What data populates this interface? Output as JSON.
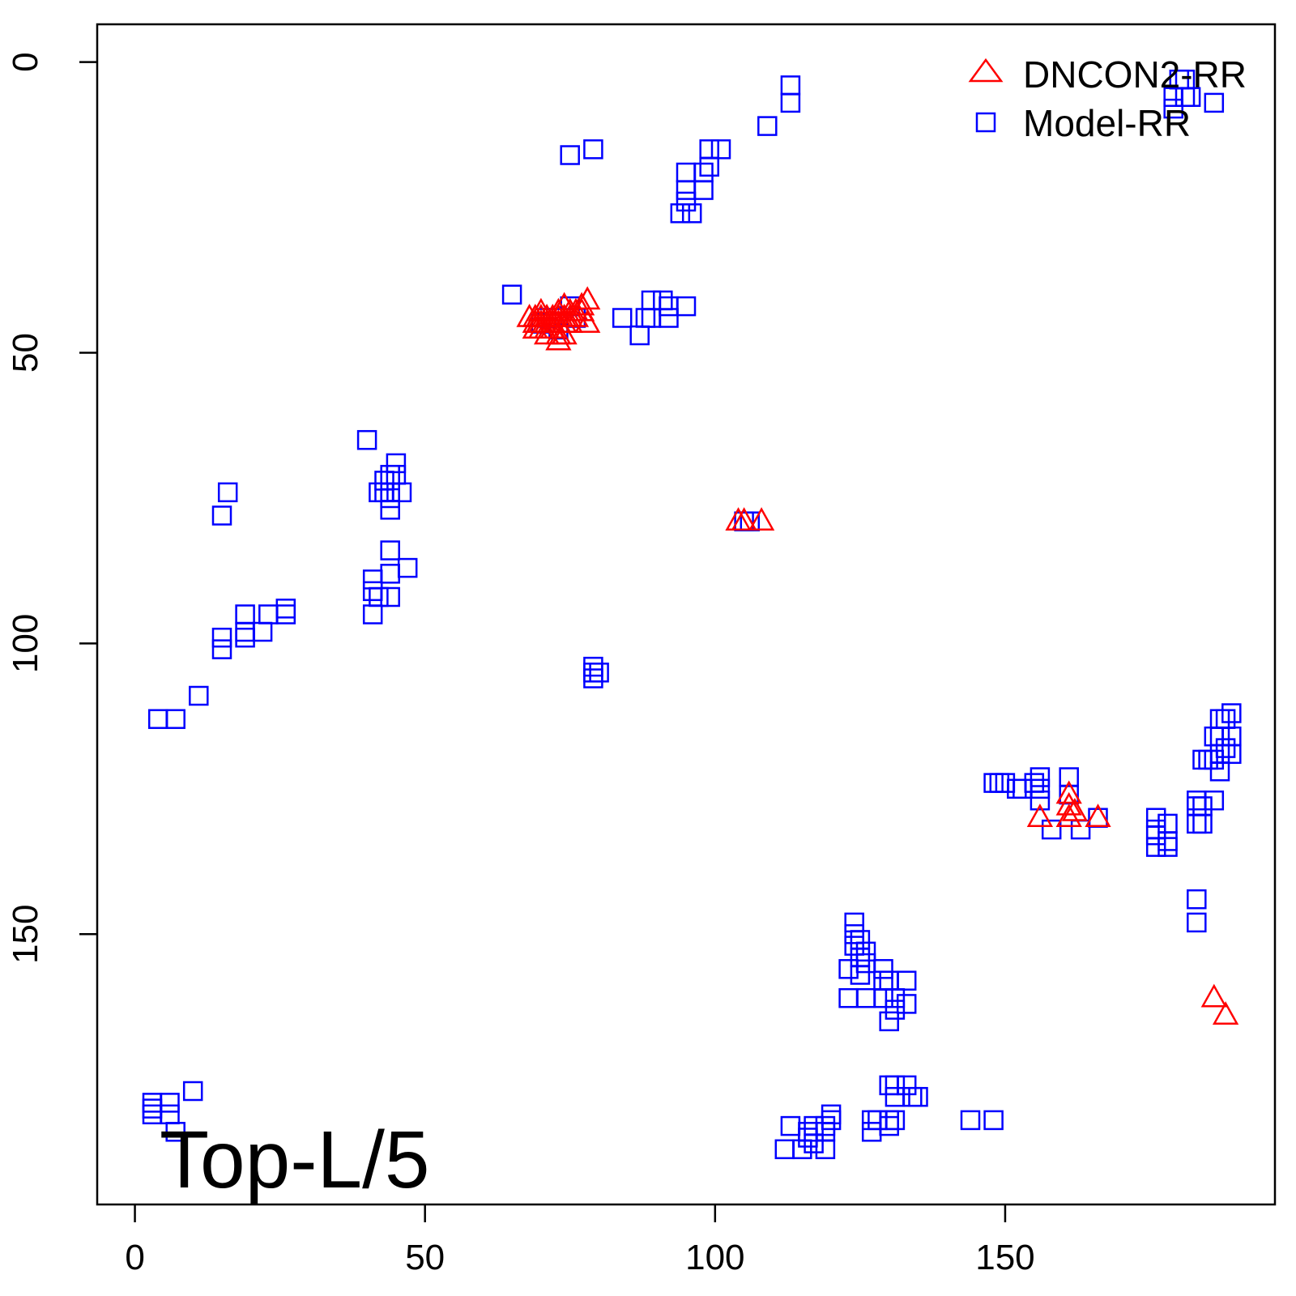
{
  "chart_data": {
    "type": "scatter",
    "x_ticks": [
      0,
      50,
      100,
      150
    ],
    "y_ticks": [
      0,
      50,
      100,
      150
    ],
    "xlim": [
      -6.5,
      196.5
    ],
    "ylim": [
      196.5,
      -6.5
    ],
    "y_reversed": true,
    "legend_position": "top-right",
    "annotation": "Top-L/5",
    "series": [
      {
        "name": "DNCON2-RR",
        "marker": "triangle",
        "color": "#ff0000",
        "points": [
          [
            68,
            44
          ],
          [
            69,
            44
          ],
          [
            69,
            45
          ],
          [
            69,
            46
          ],
          [
            70,
            43
          ],
          [
            70,
            44
          ],
          [
            70,
            45
          ],
          [
            70,
            46
          ],
          [
            71,
            44
          ],
          [
            71,
            45
          ],
          [
            71,
            46
          ],
          [
            71,
            47
          ],
          [
            72,
            44
          ],
          [
            72,
            45
          ],
          [
            72,
            46
          ],
          [
            73,
            43
          ],
          [
            73,
            44
          ],
          [
            73,
            45
          ],
          [
            73,
            47
          ],
          [
            73,
            48
          ],
          [
            74,
            42
          ],
          [
            74,
            44
          ],
          [
            74,
            45
          ],
          [
            74,
            47
          ],
          [
            75,
            43
          ],
          [
            75,
            44
          ],
          [
            75,
            45
          ],
          [
            76,
            43
          ],
          [
            76,
            44
          ],
          [
            77,
            42
          ],
          [
            77,
            43
          ],
          [
            78,
            41
          ],
          [
            78,
            45
          ],
          [
            104,
            79
          ],
          [
            105,
            79
          ],
          [
            108,
            79
          ],
          [
            156,
            130
          ],
          [
            161,
            126
          ],
          [
            161,
            128
          ],
          [
            161,
            130
          ],
          [
            162,
            129
          ],
          [
            166,
            130
          ],
          [
            186,
            161
          ],
          [
            188,
            164
          ]
        ]
      },
      {
        "name": "Model-RR",
        "marker": "square",
        "color": "#0000ff",
        "points": [
          [
            180,
            3
          ],
          [
            181,
            6
          ],
          [
            182,
            6
          ],
          [
            181,
            3
          ],
          [
            186,
            7
          ],
          [
            179,
            6
          ],
          [
            179,
            8
          ],
          [
            113,
            4
          ],
          [
            113,
            7
          ],
          [
            109,
            11
          ],
          [
            101,
            15
          ],
          [
            99,
            15
          ],
          [
            99,
            18
          ],
          [
            98,
            19
          ],
          [
            98,
            22
          ],
          [
            95,
            19
          ],
          [
            95,
            22
          ],
          [
            95,
            24
          ],
          [
            94,
            26
          ],
          [
            96,
            26
          ],
          [
            79,
            15
          ],
          [
            75,
            16
          ],
          [
            65,
            40
          ],
          [
            70,
            45
          ],
          [
            71,
            44
          ],
          [
            72,
            44
          ],
          [
            73,
            46
          ],
          [
            75,
            42
          ],
          [
            76,
            44
          ],
          [
            84,
            44
          ],
          [
            87,
            47
          ],
          [
            88,
            44
          ],
          [
            89,
            41
          ],
          [
            89,
            44
          ],
          [
            91,
            41
          ],
          [
            92,
            42
          ],
          [
            92,
            44
          ],
          [
            95,
            42
          ],
          [
            40,
            65
          ],
          [
            45,
            69
          ],
          [
            44,
            71
          ],
          [
            45,
            71
          ],
          [
            43,
            72
          ],
          [
            42,
            74
          ],
          [
            43,
            74
          ],
          [
            44,
            74
          ],
          [
            46,
            74
          ],
          [
            44,
            75
          ],
          [
            44,
            77
          ],
          [
            16,
            74
          ],
          [
            15,
            78
          ],
          [
            105,
            79
          ],
          [
            106,
            79
          ],
          [
            44,
            84
          ],
          [
            47,
            87
          ],
          [
            44,
            88
          ],
          [
            41,
            89
          ],
          [
            41,
            91
          ],
          [
            44,
            92
          ],
          [
            42,
            92
          ],
          [
            41,
            95
          ],
          [
            26,
            94
          ],
          [
            26,
            95
          ],
          [
            23,
            95
          ],
          [
            19,
            95
          ],
          [
            22,
            98
          ],
          [
            19,
            98
          ],
          [
            19,
            99
          ],
          [
            15,
            99
          ],
          [
            15,
            101
          ],
          [
            79,
            104
          ],
          [
            79,
            105
          ],
          [
            80,
            105
          ],
          [
            79,
            106
          ],
          [
            11,
            109
          ],
          [
            7,
            113
          ],
          [
            4,
            113
          ],
          [
            189,
            112
          ],
          [
            187,
            113
          ],
          [
            188,
            113
          ],
          [
            187,
            116
          ],
          [
            189,
            116
          ],
          [
            186,
            116
          ],
          [
            188,
            118
          ],
          [
            187,
            119
          ],
          [
            189,
            119
          ],
          [
            184,
            120
          ],
          [
            185,
            120
          ],
          [
            186,
            120
          ],
          [
            187,
            122
          ],
          [
            148,
            124
          ],
          [
            149,
            124
          ],
          [
            150,
            124
          ],
          [
            152,
            125
          ],
          [
            153,
            125
          ],
          [
            155,
            124
          ],
          [
            156,
            123
          ],
          [
            156,
            125
          ],
          [
            156,
            127
          ],
          [
            161,
            123
          ],
          [
            161,
            126
          ],
          [
            158,
            132
          ],
          [
            163,
            132
          ],
          [
            166,
            130
          ],
          [
            176,
            130
          ],
          [
            176,
            132
          ],
          [
            176,
            133
          ],
          [
            178,
            131
          ],
          [
            178,
            134
          ],
          [
            178,
            135
          ],
          [
            176,
            135
          ],
          [
            183,
            127
          ],
          [
            183,
            128
          ],
          [
            184,
            128
          ],
          [
            186,
            127
          ],
          [
            183,
            131
          ],
          [
            184,
            131
          ],
          [
            183,
            144
          ],
          [
            183,
            148
          ],
          [
            124,
            148
          ],
          [
            124,
            150
          ],
          [
            125,
            151
          ],
          [
            124,
            152
          ],
          [
            125,
            154
          ],
          [
            126,
            153
          ],
          [
            126,
            155
          ],
          [
            123,
            156
          ],
          [
            125,
            157
          ],
          [
            129,
            156
          ],
          [
            129,
            158
          ],
          [
            130,
            158
          ],
          [
            133,
            158
          ],
          [
            123,
            161
          ],
          [
            126,
            161
          ],
          [
            129,
            161
          ],
          [
            131,
            161
          ],
          [
            131,
            163
          ],
          [
            133,
            162
          ],
          [
            130,
            165
          ],
          [
            130,
            176
          ],
          [
            131,
            176
          ],
          [
            131,
            178
          ],
          [
            133,
            176
          ],
          [
            134,
            178
          ],
          [
            135,
            178
          ],
          [
            120,
            181
          ],
          [
            120,
            182
          ],
          [
            119,
            183
          ],
          [
            119,
            184
          ],
          [
            117,
            183
          ],
          [
            116,
            184
          ],
          [
            116,
            185
          ],
          [
            113,
            183
          ],
          [
            112,
            187
          ],
          [
            115,
            187
          ],
          [
            119,
            187
          ],
          [
            117,
            186
          ],
          [
            127,
            182
          ],
          [
            128,
            182
          ],
          [
            130,
            182
          ],
          [
            131,
            182
          ],
          [
            127,
            184
          ],
          [
            130,
            183
          ],
          [
            144,
            182
          ],
          [
            148,
            182
          ],
          [
            3,
            179
          ],
          [
            3,
            180
          ],
          [
            3,
            181
          ],
          [
            6,
            179
          ],
          [
            6,
            181
          ],
          [
            10,
            177
          ],
          [
            7,
            184
          ]
        ]
      }
    ]
  }
}
